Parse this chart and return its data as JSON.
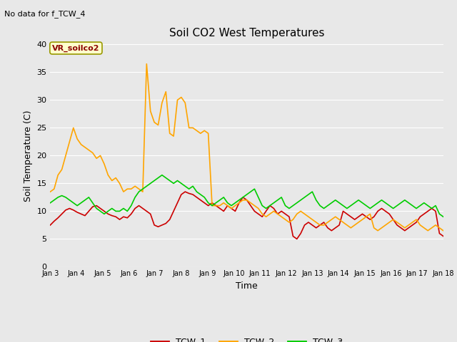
{
  "title": "Soil CO2 West Temperatures",
  "subtitle": "No data for f_TCW_4",
  "xlabel": "Time",
  "ylabel": "Soil Temperature (C)",
  "ylim": [
    0,
    40
  ],
  "annotation_text": "VR_soilco2",
  "annotation_color": "#8b0000",
  "annotation_bg": "#ffffcc",
  "annotation_border": "#999900",
  "plot_bg_color": "#e8e8e8",
  "fig_bg_color": "#e8e8e8",
  "grid_color": "#ffffff",
  "tick_labels": [
    "Jan 3",
    "Jan 4",
    "Jan 5",
    "Jan 6",
    "Jan 7",
    "Jan 8",
    "Jan 9",
    "Jan 10",
    "Jan 11",
    "Jan 12",
    "Jan 13",
    "Jan 14",
    "Jan 15",
    "Jan 16",
    "Jan 17",
    "Jan 18"
  ],
  "series": {
    "TCW_1": {
      "color": "#cc0000",
      "linewidth": 1.2
    },
    "TCW_2": {
      "color": "#ffa500",
      "linewidth": 1.2
    },
    "TCW_3": {
      "color": "#00cc00",
      "linewidth": 1.2
    }
  },
  "TCW_1": [
    7.5,
    8.2,
    8.8,
    9.5,
    10.2,
    10.5,
    10.2,
    9.8,
    9.5,
    9.2,
    10.0,
    10.8,
    11.0,
    10.5,
    10.0,
    9.5,
    9.2,
    9.0,
    8.5,
    9.0,
    8.8,
    9.5,
    10.5,
    11.0,
    10.5,
    10.0,
    9.5,
    7.5,
    7.2,
    7.5,
    7.8,
    8.5,
    10.0,
    11.5,
    13.0,
    13.5,
    13.2,
    13.0,
    12.5,
    12.0,
    11.5,
    11.0,
    11.5,
    11.0,
    10.5,
    10.0,
    11.0,
    10.5,
    10.0,
    11.5,
    12.5,
    12.0,
    11.0,
    10.0,
    9.5,
    9.0,
    10.0,
    11.0,
    10.5,
    9.5,
    10.0,
    9.5,
    9.0,
    5.5,
    5.0,
    6.0,
    7.5,
    8.0,
    7.5,
    7.0,
    7.5,
    8.0,
    7.0,
    6.5,
    7.0,
    7.5,
    10.0,
    9.5,
    9.0,
    8.5,
    9.0,
    9.5,
    9.0,
    8.5,
    9.0,
    10.0,
    10.5,
    10.0,
    9.5,
    8.5,
    7.5,
    7.0,
    6.5,
    7.0,
    7.5,
    8.0,
    9.0,
    9.5,
    10.0,
    10.5,
    10.0,
    6.0,
    5.5
  ],
  "TCW_2": [
    13.5,
    14.0,
    16.5,
    17.5,
    20.0,
    22.5,
    25.0,
    23.0,
    22.0,
    21.5,
    21.0,
    20.5,
    19.5,
    20.0,
    18.5,
    16.5,
    15.5,
    16.0,
    15.0,
    13.5,
    14.0,
    14.0,
    14.5,
    14.0,
    13.5,
    36.5,
    28.0,
    26.0,
    25.5,
    29.5,
    31.5,
    24.0,
    23.5,
    30.0,
    30.5,
    29.5,
    25.0,
    25.0,
    24.5,
    24.0,
    24.5,
    24.0,
    11.0,
    11.0,
    11.0,
    11.5,
    11.0,
    10.5,
    11.0,
    11.5,
    12.0,
    12.0,
    11.5,
    11.0,
    10.5,
    9.5,
    9.0,
    9.5,
    10.0,
    9.5,
    9.0,
    8.5,
    8.0,
    8.5,
    9.5,
    10.0,
    9.5,
    9.0,
    8.5,
    8.0,
    7.5,
    7.5,
    8.0,
    8.5,
    9.0,
    8.5,
    8.0,
    7.5,
    7.0,
    7.5,
    8.0,
    8.5,
    9.0,
    9.5,
    7.0,
    6.5,
    7.0,
    7.5,
    8.0,
    8.5,
    8.0,
    7.5,
    7.0,
    7.5,
    8.0,
    8.5,
    7.5,
    7.0,
    6.5,
    7.0,
    7.5,
    7.0,
    6.5
  ],
  "TCW_3": [
    11.5,
    12.0,
    12.5,
    12.8,
    12.5,
    12.0,
    11.5,
    11.0,
    11.5,
    12.0,
    12.5,
    11.5,
    10.5,
    10.0,
    9.5,
    10.0,
    10.5,
    10.0,
    10.0,
    10.5,
    10.0,
    11.0,
    12.5,
    13.5,
    14.0,
    14.5,
    15.0,
    15.5,
    16.0,
    16.5,
    16.0,
    15.5,
    15.0,
    15.5,
    15.0,
    14.5,
    14.0,
    14.5,
    13.5,
    13.0,
    12.5,
    11.5,
    11.0,
    11.5,
    12.0,
    12.5,
    11.5,
    11.0,
    11.5,
    12.0,
    12.5,
    13.0,
    13.5,
    14.0,
    12.5,
    11.0,
    10.5,
    11.0,
    11.5,
    12.0,
    12.5,
    11.0,
    10.5,
    11.0,
    11.5,
    12.0,
    12.5,
    13.0,
    13.5,
    12.0,
    11.0,
    10.5,
    11.0,
    11.5,
    12.0,
    11.5,
    11.0,
    10.5,
    11.0,
    11.5,
    12.0,
    11.5,
    11.0,
    10.5,
    11.0,
    11.5,
    12.0,
    11.5,
    11.0,
    10.5,
    11.0,
    11.5,
    12.0,
    11.5,
    11.0,
    10.5,
    11.0,
    11.5,
    11.0,
    10.5,
    11.0,
    9.5,
    9.0
  ]
}
